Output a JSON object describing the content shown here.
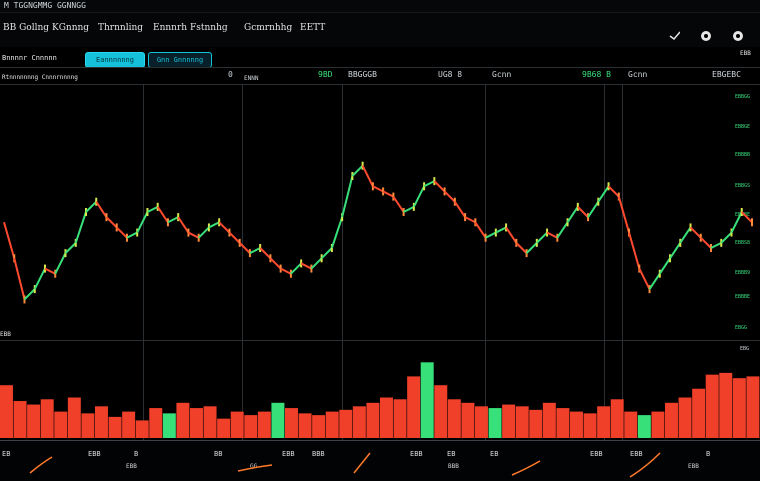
{
  "titlebar": {
    "text": "M TGGNGMMG GGNNGG"
  },
  "menu": {
    "items": [
      "BB Gollng",
      "KGnnng",
      "Thrnnling",
      "Ennnrh",
      "Fstnnhg",
      "Gcmrnhhg",
      "EETT"
    ]
  },
  "toolbar": {
    "left_label": "Bnnnnr Cnnnnn",
    "pill_active": "Eannnnnng",
    "pill_outline": "Gnn Gnnnnng",
    "sub_label": "Rtnnnnnnng Cnnnrnnnng",
    "icons": [
      "checkmark-icon",
      "settings-icon",
      "close-icon"
    ],
    "corner_label": "EBB"
  },
  "panel_header": {
    "cells": [
      {
        "label": "0",
        "value": "",
        "name": "cell-0"
      },
      {
        "label": "",
        "value": "9BD",
        "name": "cell-1"
      },
      {
        "label": "BBGGGB",
        "value": "UG8 8",
        "name": "cell-2"
      },
      {
        "label": "Gcnn",
        "value": "9B68 B",
        "name": "cell-3"
      },
      {
        "label": "Gcnn",
        "value": "EBGEBC",
        "name": "cell-4"
      }
    ],
    "sub_label": "ENNN"
  },
  "price_axis": [
    "EBBGG",
    "EBBGE",
    "EBBBB",
    "EBBGS",
    "EBBBE",
    "EBBS8",
    "EBBB9",
    "EBBBE",
    "EBGG",
    "EBB"
  ],
  "volume_label": "EBB",
  "volume_axis": "EBG",
  "bottom_labels": [
    "EB",
    "EBB",
    "B",
    "BB",
    "EBB",
    "BBB",
    "EBB",
    "EB",
    "EB",
    "EBB",
    "EBB",
    "B"
  ],
  "bottom_sub": [
    "EBB",
    "GG",
    "BBB",
    "EBB"
  ],
  "colors": {
    "up": "#38e07a",
    "down": "#ff4a2f",
    "accent": "#15c0da",
    "grid": "#2a2f33"
  },
  "chart_data": {
    "type": "line",
    "title": "",
    "price_series": [
      78,
      64,
      48,
      52,
      60,
      58,
      66,
      70,
      82,
      86,
      80,
      76,
      72,
      74,
      82,
      84,
      78,
      80,
      74,
      72,
      76,
      78,
      74,
      70,
      66,
      68,
      64,
      60,
      58,
      62,
      60,
      64,
      68,
      80,
      96,
      100,
      92,
      90,
      88,
      82,
      84,
      92,
      94,
      90,
      86,
      80,
      78,
      72,
      74,
      76,
      70,
      66,
      70,
      74,
      72,
      78,
      84,
      80,
      86,
      92,
      88,
      74,
      60,
      52,
      58,
      64,
      70,
      76,
      72,
      68,
      70,
      74,
      82,
      78
    ],
    "volume_series": [
      60,
      42,
      38,
      44,
      30,
      46,
      28,
      36,
      24,
      30,
      20,
      34,
      28,
      40,
      34,
      36,
      22,
      30,
      26,
      30,
      40,
      34,
      28,
      26,
      30,
      32,
      36,
      40,
      46,
      44,
      70,
      86,
      60,
      44,
      40,
      36,
      34,
      38,
      36,
      32,
      40,
      34,
      30,
      28,
      36,
      44,
      30,
      26,
      30,
      40,
      46,
      56,
      72,
      74,
      68,
      70
    ],
    "volume_up_index": [
      12,
      20,
      31,
      36,
      47
    ],
    "ylim": [
      40,
      110
    ]
  }
}
